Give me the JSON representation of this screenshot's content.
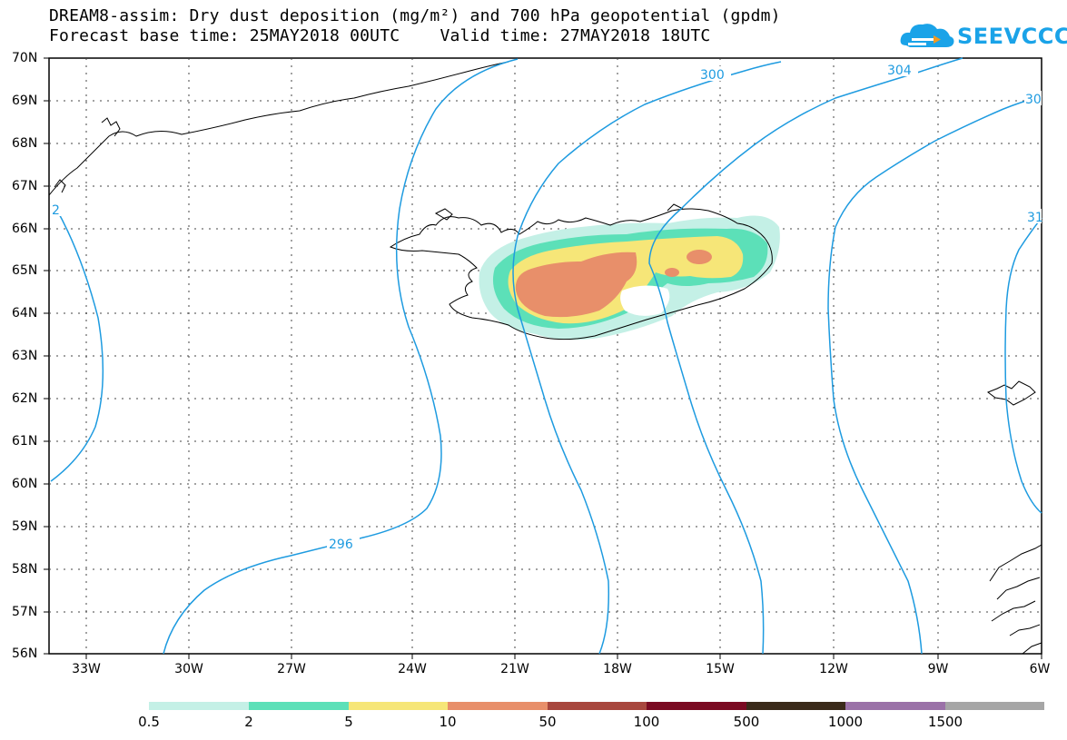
{
  "title": {
    "line1": "DREAM8-assim: Dry dust deposition (mg/m²) and 700 hPa geopotential (gpdm)",
    "line2": "Forecast base time: 25MAY2018 00UTC    Valid time: 27MAY2018 18UTC"
  },
  "logo": {
    "text": "SEEVCCC"
  },
  "axes": {
    "lat_labels": [
      "70N",
      "69N",
      "68N",
      "67N",
      "66N",
      "65N",
      "64N",
      "63N",
      "62N",
      "61N",
      "60N",
      "59N",
      "58N",
      "57N",
      "56N"
    ],
    "lon_labels": [
      "33W",
      "30W",
      "27W",
      "24W",
      "21W",
      "18W",
      "15W",
      "12W",
      "9W",
      "6W"
    ],
    "lat_range": [
      56,
      70
    ],
    "lon_range": [
      -35,
      -6
    ]
  },
  "contours": {
    "color": "#1e9be0",
    "labels": [
      {
        "value": "296"
      },
      {
        "value": "300"
      },
      {
        "value": "304"
      },
      {
        "value": "30"
      },
      {
        "value": "31"
      },
      {
        "value": "2"
      }
    ]
  },
  "colorbar": {
    "colors": [
      "#c4f0e6",
      "#5ce0b8",
      "#f6e678",
      "#e88f6a",
      "#a8473e",
      "#7a0a22",
      "#3a2a1a",
      "#9b72a8",
      "#a6a6a6"
    ],
    "labels": [
      "0.5",
      "2",
      "5",
      "10",
      "50",
      "100",
      "500",
      "1000",
      "1500"
    ]
  }
}
